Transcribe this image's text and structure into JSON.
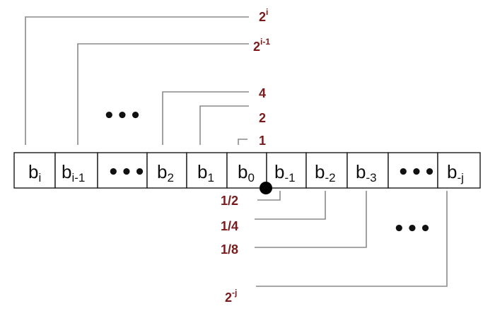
{
  "register_cells": [
    {
      "base": "b",
      "sub": "i"
    },
    {
      "base": "b",
      "sub": "i-1"
    },
    {
      "ellipsis": "•••"
    },
    {
      "base": "b",
      "sub": "2"
    },
    {
      "base": "b",
      "sub": "1"
    },
    {
      "base": "b",
      "sub": "0"
    },
    {
      "base": "b",
      "sub": "-1"
    },
    {
      "base": "b",
      "sub": "-2"
    },
    {
      "base": "b",
      "sub": "-3"
    },
    {
      "ellipsis": "•••"
    },
    {
      "base": "b",
      "sub": "-j"
    }
  ],
  "upper_weights": [
    {
      "base": "2",
      "sup": "i"
    },
    {
      "base": "2",
      "sup": "i-1"
    },
    {
      "text": "4"
    },
    {
      "text": "2"
    },
    {
      "text": "1"
    }
  ],
  "lower_weights": [
    {
      "text": "1/2"
    },
    {
      "text": "1/4"
    },
    {
      "text": "1/8"
    },
    {
      "base": "2",
      "sup": "-j"
    }
  ],
  "upper_ellipsis": "•••",
  "lower_ellipsis": "•••",
  "colors": {
    "weight_text": "#7a1a1a",
    "leader_line": "#8a8a8a",
    "cell_border": "#1a1a1a",
    "binary_point": "#000000"
  }
}
